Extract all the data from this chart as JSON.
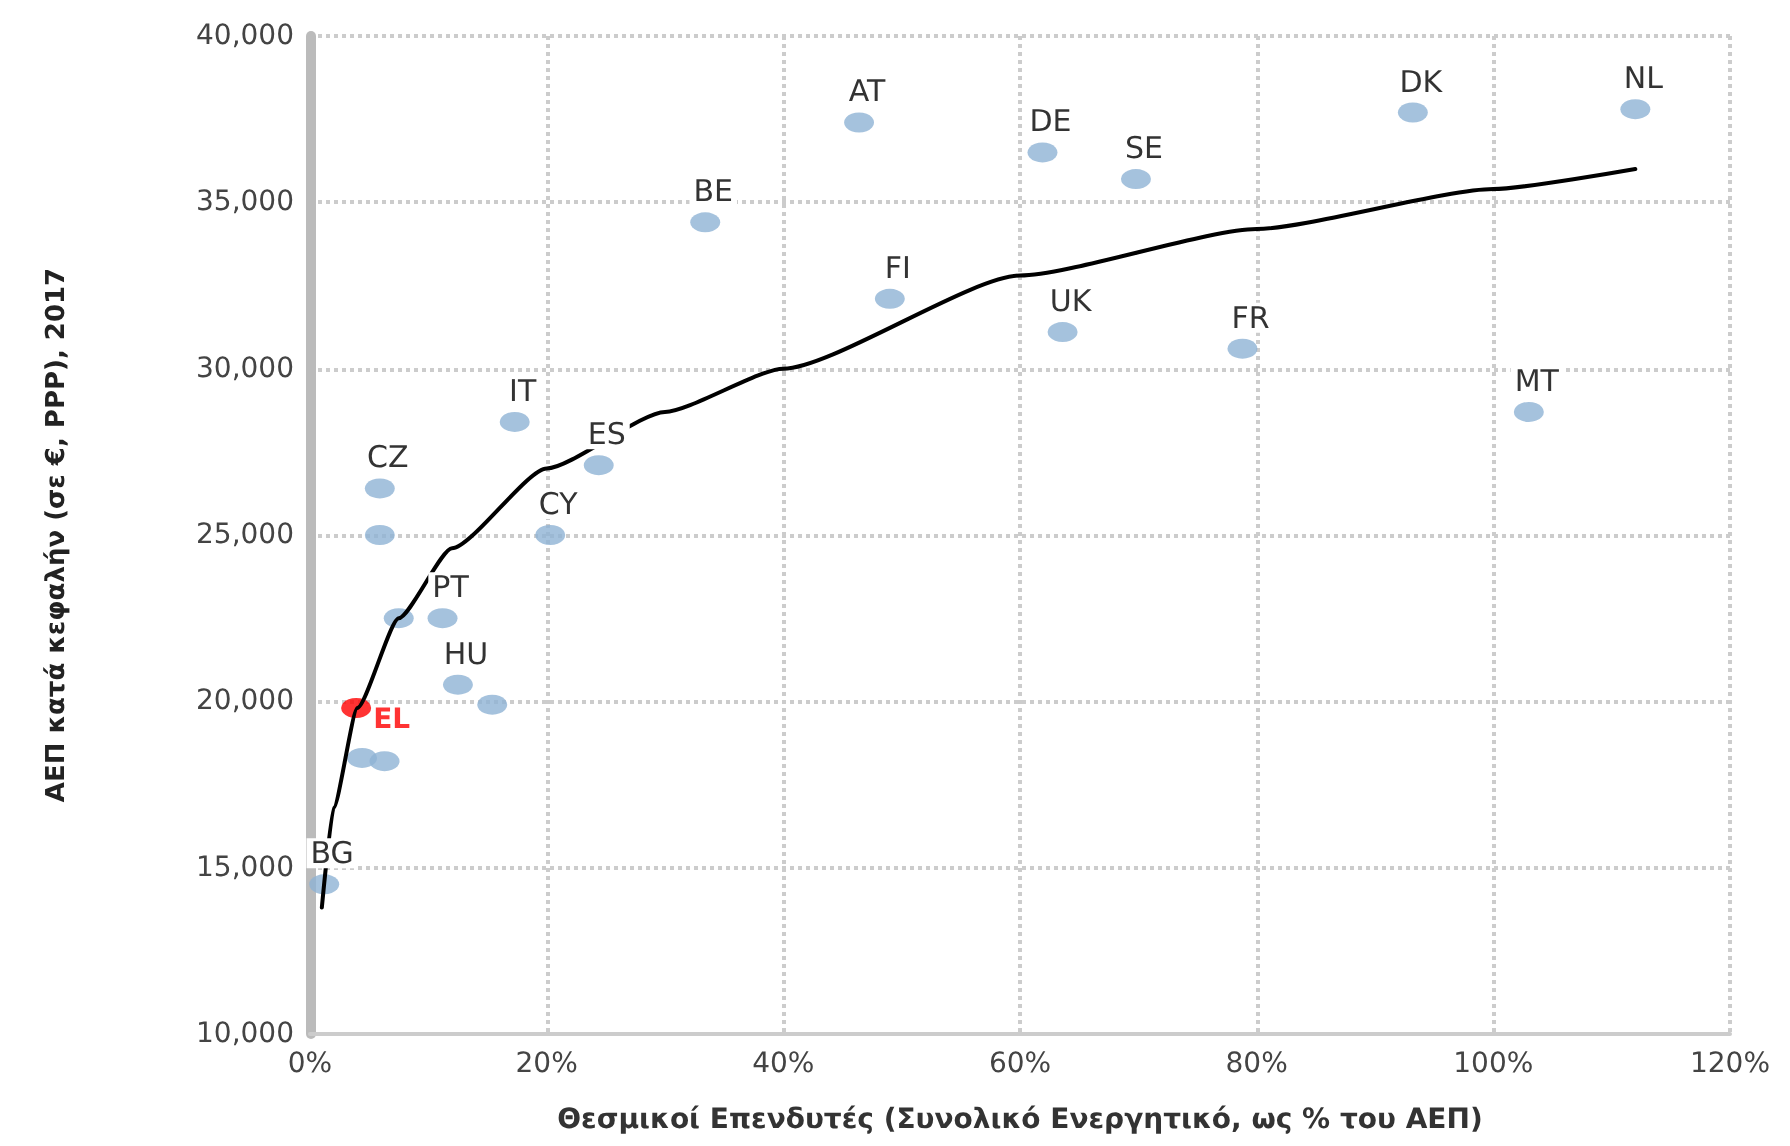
{
  "chart_data": {
    "type": "scatter",
    "xlabel": "Θεσμικοί Επενδυτές (Συνολικό Ενεργητικό, ως % του ΑΕΠ)",
    "ylabel": "ΑΕΠ κατά κεφαλήν (σε €, PPP), 2017",
    "xlim": [
      0,
      120
    ],
    "xticks": [
      {
        "value": 0,
        "label": "0%"
      },
      {
        "value": 20,
        "label": "20%"
      },
      {
        "value": 40,
        "label": "40%"
      },
      {
        "value": 60,
        "label": "60%"
      },
      {
        "value": 80,
        "label": "80%"
      },
      {
        "value": 100,
        "label": "100%"
      },
      {
        "value": 120,
        "label": "120%"
      }
    ],
    "ylim": [
      10000,
      40000
    ],
    "yticks": [
      {
        "value": 10000,
        "label": "10,000"
      },
      {
        "value": 15000,
        "label": "15,000"
      },
      {
        "value": 20000,
        "label": "20,000"
      },
      {
        "value": 25000,
        "label": "25,000"
      },
      {
        "value": 30000,
        "label": "30,000"
      },
      {
        "value": 35000,
        "label": "35,000"
      },
      {
        "value": 40000,
        "label": "40,000"
      }
    ],
    "grid": true,
    "legend": false,
    "marker": "circle",
    "series": [
      {
        "color": "#8fb3d4",
        "x": [
          46.4,
          61.9,
          69.8,
          93.2,
          112,
          33.4,
          49,
          63.6,
          78.8,
          103,
          17.3,
          24.4,
          5.9,
          5.9,
          20.3,
          11.2,
          7.5,
          12.5,
          15.4,
          4.4,
          6.3,
          1.2
        ],
        "values": [
          37400,
          36500,
          35700,
          37700,
          37800,
          34400,
          32100,
          31100,
          30600,
          28700,
          28400,
          27100,
          26400,
          25000,
          25000,
          22500,
          22500,
          20500,
          19900,
          18300,
          18200,
          14500
        ]
      },
      {
        "type": "scatter",
        "name": "EL",
        "color": "#ff0000",
        "x": [
          3.9
        ],
        "values": [
          19800
        ]
      },
      {
        "type": "line",
        "color": "#000000",
        "marker": "none",
        "x": [
          1,
          2,
          4,
          7.5,
          12,
          20,
          30,
          40,
          60,
          80,
          100,
          112
        ],
        "values": [
          13800,
          16800,
          19800,
          22500,
          24600,
          27000,
          28700,
          30000,
          32800,
          34200,
          35400,
          36000
        ]
      }
    ],
    "annotations": [
      {
        "text": "AT",
        "x": 46.4,
        "y": 37400
      },
      {
        "text": "DE",
        "x": 61.9,
        "y": 36500
      },
      {
        "text": "SE",
        "x": 69.8,
        "y": 35700
      },
      {
        "text": "DK",
        "x": 93.2,
        "y": 37700
      },
      {
        "text": "NL",
        "x": 112,
        "y": 37800
      },
      {
        "text": "BE",
        "x": 33.4,
        "y": 34400
      },
      {
        "text": "FI",
        "x": 49,
        "y": 32100
      },
      {
        "text": "UK",
        "x": 63.6,
        "y": 31100
      },
      {
        "text": "FR",
        "x": 78.8,
        "y": 30600
      },
      {
        "text": "MT",
        "x": 103,
        "y": 28700
      },
      {
        "text": "IT",
        "x": 17.3,
        "y": 28400
      },
      {
        "text": "ES",
        "x": 24.4,
        "y": 27100
      },
      {
        "text": "CZ",
        "x": 5.9,
        "y": 26400
      },
      {
        "text": "CY",
        "x": 20.3,
        "y": 25000
      },
      {
        "text": "PT",
        "x": 11.2,
        "y": 22500
      },
      {
        "text": "HU",
        "x": 12.5,
        "y": 20500
      },
      {
        "text": "BG",
        "x": 1.2,
        "y": 14500
      }
    ]
  }
}
